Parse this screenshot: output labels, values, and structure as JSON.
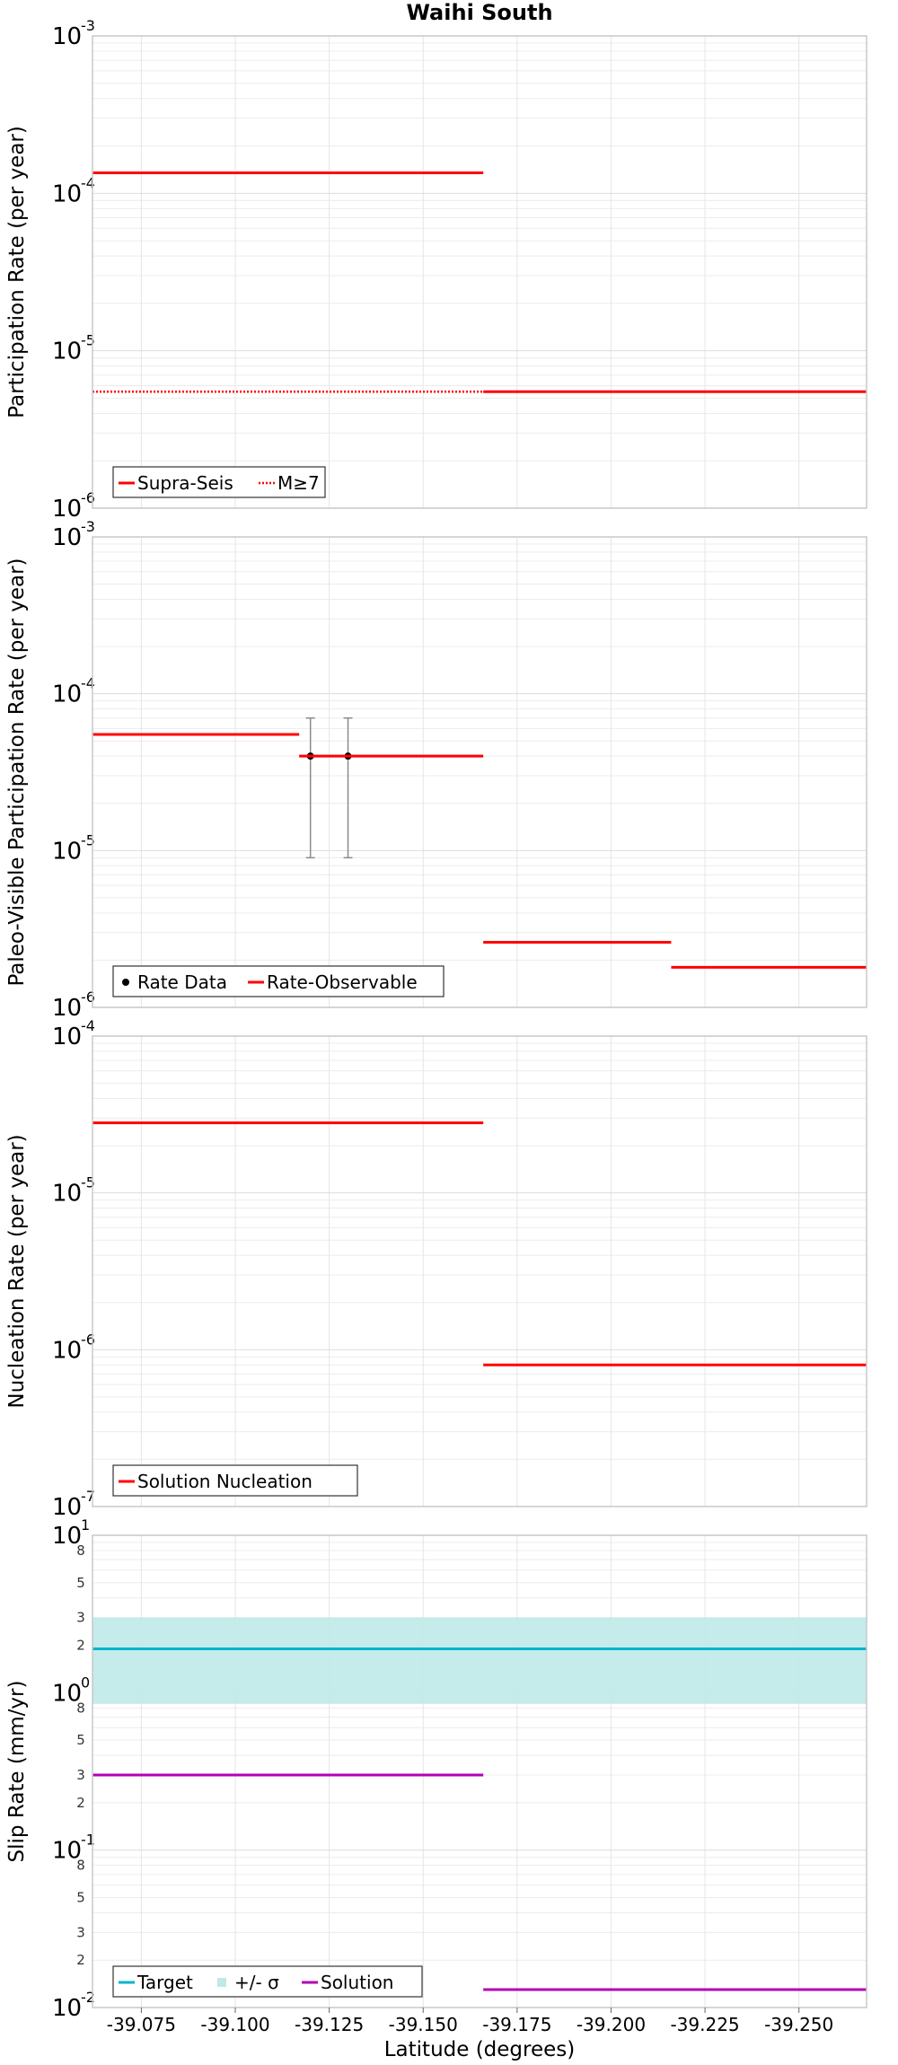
{
  "chart_data": [
    {
      "type": "line",
      "title": "Waihi South",
      "ylabel": "Participation Rate (per year)",
      "yscale": "log",
      "ylim": [
        1e-06,
        0.001
      ],
      "xlim": [
        -39.062,
        -39.268
      ],
      "grid": true,
      "legend_position": "bottom-left",
      "series": [
        {
          "name": "Supra-Seis",
          "color": "#ff0000",
          "style": "solid",
          "segments": [
            [
              -39.062,
              -39.166,
              0.000135
            ],
            [
              -39.166,
              -39.268,
              5.5e-06
            ]
          ]
        },
        {
          "name": "M≥7",
          "color": "#ff0000",
          "style": "dotted",
          "segments": [
            [
              -39.062,
              -39.166,
              5.5e-06
            ]
          ]
        }
      ]
    },
    {
      "type": "line",
      "ylabel": "Paleo-Visible Participation Rate (per year)",
      "yscale": "log",
      "ylim": [
        1e-06,
        0.001
      ],
      "xlim": [
        -39.062,
        -39.268
      ],
      "grid": true,
      "legend_position": "bottom-left",
      "series": [
        {
          "name": "Rate Data",
          "type": "points",
          "color": "#000000",
          "points": [
            {
              "x": -39.12,
              "y": 4e-05,
              "lo": 9e-06,
              "hi": 7e-05
            },
            {
              "x": -39.13,
              "y": 4e-05,
              "lo": 9e-06,
              "hi": 7e-05
            }
          ]
        },
        {
          "name": "Rate-Observable",
          "color": "#ff0000",
          "style": "solid",
          "segments": [
            [
              -39.062,
              -39.117,
              5.5e-05
            ],
            [
              -39.117,
              -39.166,
              4e-05
            ],
            [
              -39.166,
              -39.216,
              2.6e-06
            ],
            [
              -39.216,
              -39.268,
              1.8e-06
            ]
          ]
        }
      ]
    },
    {
      "type": "line",
      "ylabel": "Nucleation Rate (per year)",
      "yscale": "log",
      "ylim": [
        1e-07,
        0.0001
      ],
      "xlim": [
        -39.062,
        -39.268
      ],
      "grid": true,
      "legend_position": "bottom-left",
      "series": [
        {
          "name": "Solution Nucleation",
          "color": "#ff0000",
          "style": "solid",
          "segments": [
            [
              -39.062,
              -39.166,
              2.8e-05
            ],
            [
              -39.166,
              -39.268,
              8e-07
            ]
          ]
        }
      ]
    },
    {
      "type": "line",
      "ylabel": "Slip Rate (mm/yr)",
      "xlabel": "Latitude (degrees)",
      "yscale": "log",
      "ylim": [
        0.01,
        10
      ],
      "xlim": [
        -39.062,
        -39.268
      ],
      "grid": true,
      "legend_position": "bottom-left",
      "x_ticks": [
        "-39.075",
        "-39.100",
        "-39.125",
        "-39.150",
        "-39.175",
        "-39.200",
        "-39.225",
        "-39.250"
      ],
      "series": [
        {
          "name": "Target",
          "color": "#00b4c8",
          "style": "solid",
          "segments": [
            [
              -39.062,
              -39.268,
              1.9
            ]
          ]
        },
        {
          "name": "+/- σ",
          "type": "band",
          "color": "#bfe9e9",
          "range": [
            -39.062,
            -39.268,
            0.85,
            3.0
          ]
        },
        {
          "name": "Solution",
          "color": "#b400b4",
          "style": "solid",
          "segments": [
            [
              -39.062,
              -39.166,
              0.3
            ],
            [
              -39.166,
              -39.268,
              0.013
            ]
          ]
        }
      ]
    }
  ]
}
